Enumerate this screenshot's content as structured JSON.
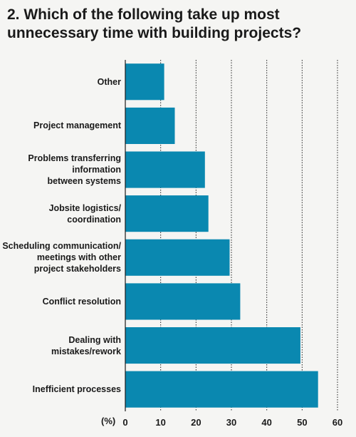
{
  "chart_data": {
    "type": "bar",
    "orientation": "horizontal",
    "title": "2. Which of the following take up most unnecessary time with building projects?",
    "categories": [
      "Other",
      "Project management",
      "Problems transferring information between systems",
      "Jobsite logistics/ coordination",
      "Scheduling communication/ meetings with other project stakeholders",
      "Conflict resolution",
      "Dealing with mistakes/rework",
      "Inefficient processes"
    ],
    "category_lines": [
      [
        "Other"
      ],
      [
        "Project management"
      ],
      [
        "Problems transferring",
        "information",
        "between systems"
      ],
      [
        "Jobsite logistics/",
        "coordination"
      ],
      [
        "Scheduling communication/",
        "meetings with other",
        "project stakeholders"
      ],
      [
        "Conflict resolution"
      ],
      [
        "Dealing with",
        "mistakes/rework"
      ],
      [
        "Inefficient processes"
      ]
    ],
    "values": [
      11,
      14,
      22.5,
      23.5,
      29.5,
      32.5,
      49.5,
      54.5
    ],
    "xlim": [
      0,
      60
    ],
    "xticks": [
      0,
      10,
      20,
      30,
      40,
      50,
      60
    ],
    "xlabel": "(%)",
    "gridlines": "dotted vertical",
    "bar_color": "#0a88b0"
  }
}
